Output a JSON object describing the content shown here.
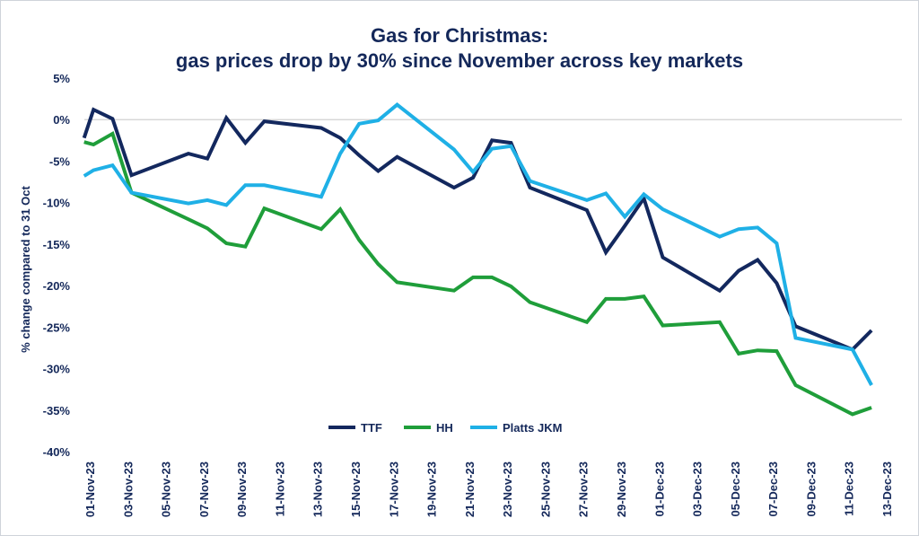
{
  "chart_data": {
    "type": "line",
    "title": "Gas for Christmas:",
    "subtitle": "gas prices drop by 30% since November across key markets",
    "xlabel": "",
    "ylabel": "% change compared to 31 Oct",
    "ylim": [
      -40,
      5
    ],
    "yticks": [
      5,
      0,
      -5,
      -10,
      -15,
      -20,
      -25,
      -30,
      -35,
      -40
    ],
    "ytick_labels": [
      "5%",
      "0%",
      "-5%",
      "-10%",
      "-15%",
      "-20%",
      "-25%",
      "-30%",
      "-35%",
      "-40%"
    ],
    "x_unit": "days since 01-Nov-23",
    "xlim": [
      0,
      42
    ],
    "xticks": [
      0,
      2,
      4,
      6,
      8,
      10,
      12,
      14,
      16,
      18,
      20,
      22,
      24,
      26,
      28,
      30,
      32,
      34,
      36,
      38,
      40,
      42
    ],
    "xtick_labels": [
      "01-Nov-23",
      "03-Nov-23",
      "05-Nov-23",
      "07-Nov-23",
      "09-Nov-23",
      "11-Nov-23",
      "13-Nov-23",
      "15-Nov-23",
      "17-Nov-23",
      "19-Nov-23",
      "21-Nov-23",
      "23-Nov-23",
      "25-Nov-23",
      "27-Nov-23",
      "29-Nov-23",
      "01-Dec-23",
      "03-Dec-23",
      "05-Dec-23",
      "07-Dec-23",
      "09-Dec-23",
      "11-Dec-23",
      "13-Dec-23"
    ],
    "x": [
      -0.3,
      0.2,
      1.2,
      2.2,
      5.2,
      6.2,
      7.2,
      8.2,
      9.2,
      12.2,
      13.2,
      14.2,
      15.2,
      16.2,
      19.2,
      20.2,
      21.2,
      22.2,
      23.2,
      26.2,
      27.2,
      28.2,
      29.2,
      30.2,
      33.2,
      34.2,
      35.2,
      36.2,
      37.2,
      40.2,
      41.2
    ],
    "series": [
      {
        "name": "TTF",
        "color": "#13285e",
        "values": [
          -2.2,
          1.2,
          0.1,
          -6.7,
          -4.1,
          -4.7,
          0.2,
          -2.8,
          -0.2,
          -1.0,
          -2.2,
          -4.3,
          -6.2,
          -4.5,
          -8.2,
          -7.0,
          -2.5,
          -2.8,
          -8.2,
          -10.9,
          -16.0,
          -12.8,
          -9.5,
          -16.6,
          -20.6,
          -18.2,
          -16.9,
          -19.7,
          -24.9,
          -27.7,
          -25.4
        ]
      },
      {
        "name": "HH",
        "color": "#1f9e3a",
        "values": [
          -2.7,
          -3.0,
          -1.7,
          -8.8,
          -12.0,
          -13.1,
          -14.9,
          -15.3,
          -10.7,
          -13.2,
          -10.8,
          -14.5,
          -17.4,
          -19.6,
          -20.6,
          -19.0,
          -19.0,
          -20.1,
          -22.0,
          -24.4,
          -21.6,
          -21.6,
          -21.3,
          -24.8,
          -24.4,
          -28.2,
          -27.8,
          -27.9,
          -32.0,
          -35.5,
          -34.7
        ]
      },
      {
        "name": "Platts JKM",
        "color": "#1fb0e6",
        "values": [
          -6.8,
          -6.1,
          -5.5,
          -8.8,
          -10.1,
          -9.7,
          -10.3,
          -7.9,
          -7.9,
          -9.3,
          -4.1,
          -0.5,
          -0.1,
          1.8,
          -3.6,
          -6.3,
          -3.5,
          -3.2,
          -7.4,
          -9.7,
          -8.9,
          -11.7,
          -9.0,
          -10.8,
          -14.1,
          -13.2,
          -13.0,
          -14.9,
          -26.3,
          -27.7,
          -32.0
        ]
      }
    ],
    "grid": false,
    "zero_line": true,
    "legend": "bottom-center"
  }
}
